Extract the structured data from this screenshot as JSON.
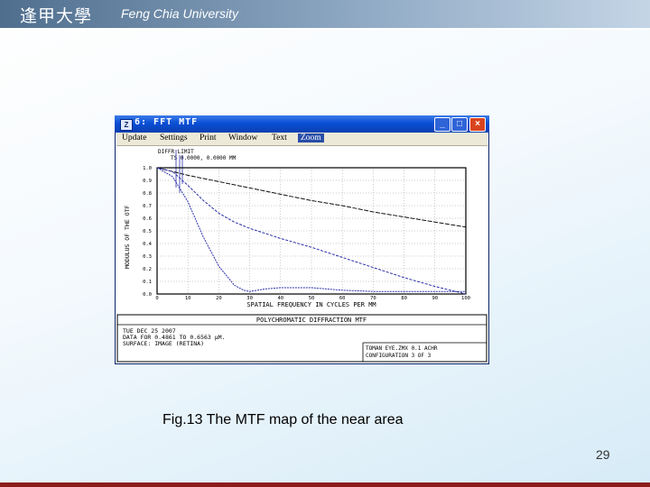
{
  "header": {
    "logo_chars": "逢甲大學",
    "university": "Feng Chia University"
  },
  "window": {
    "title": "6: FFT MTF",
    "icon": "zemax-app-icon",
    "buttons": {
      "minimize": "_",
      "maximize": "□",
      "close": "×"
    },
    "menu": [
      "Update",
      "Settings",
      "Print",
      "Window",
      "Text",
      "Zoom"
    ],
    "menu_active": "Zoom"
  },
  "chart_data": {
    "type": "line",
    "legend_top": [
      "DIFFR LIMIT",
      "TS 0.0000, 0.0000 MM"
    ],
    "ylabel": "MODULUS OF THE OTF",
    "xlabel": "SPATIAL FREQUENCY IN CYCLES PER MM",
    "xlim": [
      0,
      100
    ],
    "ylim": [
      0,
      1
    ],
    "x_ticks": [
      "0",
      "10",
      "20",
      "30",
      "40",
      "50",
      "60",
      "70",
      "80",
      "90",
      "100"
    ],
    "y_ticks": [
      "0.0",
      "0.1",
      "0.2",
      "0.3",
      "0.4",
      "0.5",
      "0.6",
      "0.7",
      "0.8",
      "0.9",
      "1.0"
    ],
    "grid": true,
    "series": [
      {
        "x": [
          0,
          5,
          10,
          20,
          30,
          40,
          50,
          60,
          70,
          80,
          90,
          100
        ],
        "y": [
          1.0,
          0.97,
          0.94,
          0.89,
          0.84,
          0.79,
          0.74,
          0.7,
          0.65,
          0.61,
          0.57,
          0.53
        ]
      },
      {
        "x": [
          0,
          5,
          10,
          15,
          20,
          25,
          30,
          35,
          40,
          50,
          60,
          70,
          80,
          90,
          100
        ],
        "y": [
          1.0,
          0.97,
          0.86,
          0.74,
          0.64,
          0.57,
          0.52,
          0.48,
          0.44,
          0.37,
          0.29,
          0.21,
          0.13,
          0.06,
          0.0
        ]
      },
      {
        "x": [
          0,
          5,
          10,
          15,
          20,
          25,
          28,
          30,
          35,
          40,
          45,
          50,
          55,
          60,
          70,
          80,
          90,
          100
        ],
        "y": [
          1.0,
          0.93,
          0.73,
          0.45,
          0.22,
          0.07,
          0.03,
          0.02,
          0.04,
          0.05,
          0.05,
          0.05,
          0.04,
          0.03,
          0.02,
          0.02,
          0.02,
          0.02
        ]
      }
    ],
    "colors": {
      "frame": "#000000",
      "series": "#2b2fa8",
      "grid": "#9a9a9a"
    }
  },
  "info": {
    "title": "POLYCHROMATIC DIFFRACTION MTF",
    "left_lines": [
      "TUE DEC 25 2007",
      "DATA FOR 0.4861 TO 0.6563 µM.",
      "SURFACE: IMAGE (RETINA)"
    ],
    "right_lines": [
      "TOMAN EYE.ZMX 0.1 ACHR",
      "CONFIGURATION 3 OF 3"
    ]
  },
  "caption": "Fig.13 The MTF map of the near area",
  "page_number": "29"
}
